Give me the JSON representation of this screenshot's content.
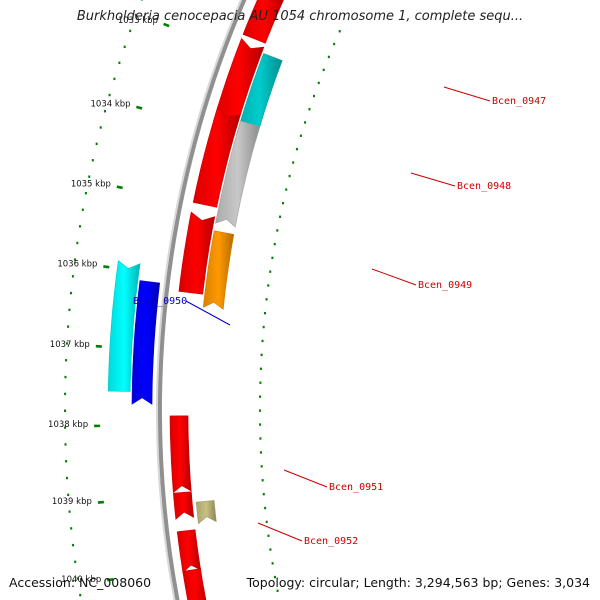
{
  "title": "Burkholderia cenocepacia AU 1054 chromosome 1, complete sequ...",
  "footer": {
    "accession": "Accession: NC_008060",
    "topology": "Topology: circular; Length: 3,294,563 bp; Genes: 3,034"
  },
  "ticks": [
    "1033 kbp",
    "1034 kbp",
    "1035 kbp",
    "1036 kbp",
    "1037 kbp",
    "1038 kbp",
    "1039 kbp",
    "1040 kbp"
  ],
  "genes": [
    {
      "label": "",
      "color": "#ff0000",
      "strand": "+"
    },
    {
      "label": "",
      "color": "#ff0000",
      "strand": "+"
    },
    {
      "label": "Bcen_0947",
      "color": "#00cccc",
      "strand": "-",
      "label_color": "#cc0000"
    },
    {
      "label": "",
      "color": "#ff0000",
      "strand": "+"
    },
    {
      "label": "Bcen_0948",
      "color": "#c8c8c8",
      "strand": "-",
      "label_color": "#cc0000"
    },
    {
      "label": "",
      "color": "#ff0000",
      "strand": "+"
    },
    {
      "label": "Bcen_0949",
      "color": "#ff9900",
      "strand": "-",
      "label_color": "#cc0000"
    },
    {
      "label": "Bcen_0950",
      "color": "#00ffff",
      "strand": "+",
      "label_color": "#0000cc"
    },
    {
      "label": "",
      "color": "#0000ff",
      "strand": "-"
    },
    {
      "label": "Bcen_0951",
      "color": "#ff0000",
      "strand": "-",
      "label_color": "#cc0000"
    },
    {
      "label": "",
      "color": "#ff0000",
      "strand": "-"
    },
    {
      "label": "Bcen_0952",
      "color": "#c8c080",
      "strand": "-",
      "label_color": "#cc0000"
    },
    {
      "label": "",
      "color": "#ff0000",
      "strand": "-"
    },
    {
      "label": "",
      "color": "#ff0000",
      "strand": "-"
    }
  ],
  "colors": {
    "backbone": "#909090",
    "tick": "#008000",
    "gc_dots": "#008000"
  }
}
